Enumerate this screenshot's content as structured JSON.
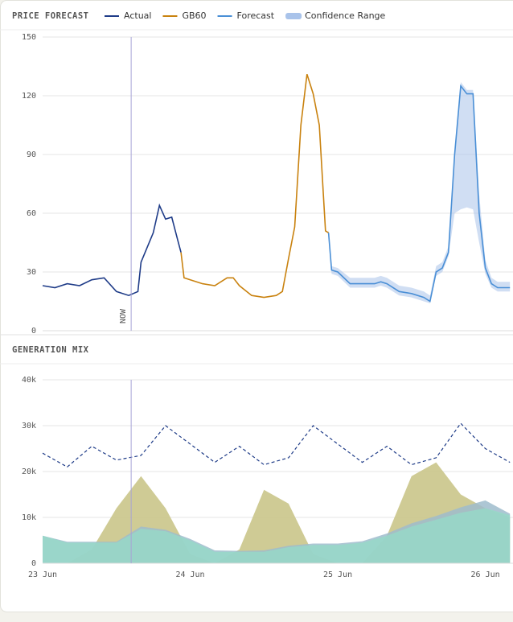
{
  "chart_data": [
    {
      "type": "line",
      "title": "PRICE FORECAST",
      "xlim": [
        0,
        76.5
      ],
      "ylim": [
        0,
        150
      ],
      "yticks": [
        0,
        30,
        60,
        90,
        120,
        150
      ],
      "grid": true,
      "annotations": [
        {
          "text": "NOW",
          "x": 14.4
        }
      ],
      "series": [
        {
          "name": "Actual",
          "color": "#1f3c88",
          "x": [
            0,
            2,
            4,
            6,
            8,
            10,
            12,
            14,
            15.5,
            16,
            18,
            19,
            20,
            21,
            22,
            22.5
          ],
          "values": [
            23,
            22,
            24,
            23,
            26,
            27,
            20,
            18,
            20,
            35,
            50,
            64,
            57,
            58,
            46,
            40
          ]
        },
        {
          "name": "GB60",
          "color": "#c9820f",
          "x": [
            22.5,
            23,
            26,
            28,
            30,
            31,
            32,
            34,
            36,
            38,
            39,
            40,
            41,
            42,
            43,
            44,
            45,
            46,
            46.5
          ],
          "values": [
            40,
            27,
            24,
            23,
            27,
            27,
            23,
            18,
            17,
            18,
            20,
            37,
            53,
            105,
            131,
            121,
            105,
            51,
            50
          ]
        },
        {
          "name": "Forecast",
          "color": "#4a8fd6",
          "x": [
            46.5,
            47,
            48,
            50,
            52,
            54,
            55,
            56,
            58,
            60,
            62,
            63,
            64,
            65,
            66,
            67,
            68,
            69,
            70,
            71,
            72,
            73,
            74,
            75,
            76
          ],
          "values": [
            50,
            31,
            30,
            24,
            24,
            24,
            25,
            24,
            20,
            19,
            17,
            15,
            30,
            32,
            40,
            90,
            125,
            121,
            121,
            60,
            32,
            24,
            22,
            22,
            22
          ]
        },
        {
          "name": "Confidence Range",
          "color": "#a9c3ea",
          "type": "band",
          "x": [
            46.5,
            47,
            48,
            50,
            52,
            54,
            55,
            56,
            58,
            60,
            62,
            63,
            64,
            65,
            66,
            67,
            68,
            69,
            70,
            71,
            72,
            73,
            74,
            75,
            76
          ],
          "low": [
            48,
            29,
            28,
            22,
            22,
            22,
            23,
            22,
            18,
            17,
            15,
            14,
            28,
            30,
            38,
            60,
            62,
            63,
            62,
            45,
            29,
            22,
            20,
            20,
            20
          ],
          "high": [
            52,
            33,
            32,
            27,
            27,
            27,
            28,
            27,
            23,
            22,
            20,
            18,
            33,
            35,
            43,
            92,
            127,
            123,
            123,
            70,
            36,
            27,
            25,
            25,
            25
          ]
        }
      ]
    },
    {
      "type": "area",
      "title": "GENERATION MIX",
      "xlim": [
        0,
        76.5
      ],
      "ylim": [
        0,
        40000
      ],
      "yticks": [
        0,
        {
          "value": 10000,
          "label": "10k"
        },
        {
          "value": 20000,
          "label": "20k"
        },
        {
          "value": 30000,
          "label": "30k"
        },
        {
          "value": 40000,
          "label": "40k"
        }
      ],
      "xticks": [
        {
          "value": 0,
          "label": "23 Jun"
        },
        {
          "value": 24,
          "label": "24 Jun"
        },
        {
          "value": 48,
          "label": "25 Jun"
        },
        {
          "value": 72,
          "label": "26 Jun"
        }
      ],
      "grid": true,
      "x": [
        0,
        4,
        8,
        12,
        16,
        20,
        24,
        28,
        32,
        36,
        40,
        44,
        48,
        52,
        56,
        60,
        64,
        68,
        72,
        76
      ],
      "series": [
        {
          "color": "#c7c283",
          "type": "area",
          "values": [
            0,
            0,
            3000,
            12000,
            19000,
            12000,
            2000,
            0,
            3000,
            16000,
            13000,
            2000,
            0,
            0,
            6000,
            19000,
            22000,
            15000,
            12000,
            10000
          ]
        },
        {
          "color": "#9fbccc",
          "type": "area",
          "values": [
            6000,
            4700,
            4700,
            4700,
            8000,
            7300,
            5300,
            2800,
            2700,
            2800,
            3800,
            4300,
            4300,
            4800,
            6500,
            8700,
            10300,
            12200,
            13700,
            10800
          ]
        },
        {
          "color": "#97d8c8",
          "type": "area",
          "values": [
            6000,
            4500,
            4500,
            4500,
            7500,
            7000,
            5000,
            2500,
            2500,
            2500,
            3500,
            4000,
            4000,
            4500,
            6000,
            8000,
            9500,
            11000,
            12000,
            10500
          ]
        },
        {
          "color": "#1f3c88",
          "type": "dashed",
          "values": [
            24000,
            21000,
            25500,
            22500,
            23500,
            30000,
            26000,
            22000,
            25500,
            21500,
            23000,
            30000,
            26000,
            22000,
            25500,
            21500,
            23000,
            30500,
            25000,
            22000
          ]
        }
      ]
    }
  ]
}
